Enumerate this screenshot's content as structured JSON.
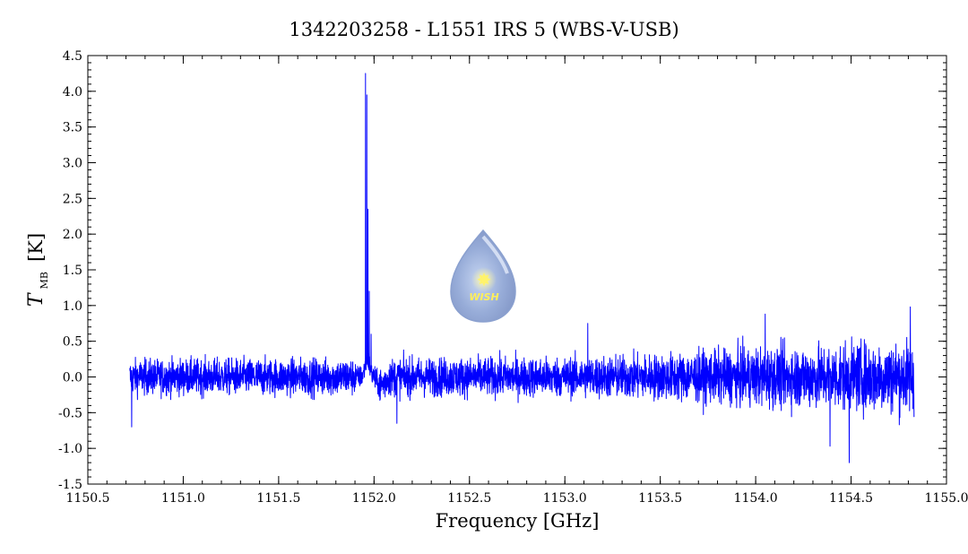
{
  "title": "1342203258 - L1551 IRS 5 (WBS-V-USB)",
  "watermark": {
    "text": "WISH"
  },
  "chart_data": {
    "type": "line",
    "title": "1342203258 - L1551 IRS 5 (WBS-V-USB)",
    "xlabel": "Frequency [GHz]",
    "ylabel": {
      "symbol": "T",
      "subscript": "MB",
      "unit": "[K]"
    },
    "xlim": [
      1150.5,
      1155.0
    ],
    "ylim": [
      -1.5,
      4.5
    ],
    "xticks": [
      "1150.5",
      "1151.0",
      "1151.5",
      "1152.0",
      "1152.5",
      "1153.0",
      "1153.5",
      "1154.0",
      "1154.5",
      "1155.0"
    ],
    "yticks": [
      "-1.5",
      "-1.0",
      "-0.5",
      "0.0",
      "0.5",
      "1.0",
      "1.5",
      "2.0",
      "2.5",
      "3.0",
      "3.5",
      "4.0",
      "4.5"
    ],
    "grid": false,
    "series": [
      {
        "color": "#0000ff",
        "x_range": [
          1150.72,
          1154.83
        ],
        "noise_rms": [
          [
            1150.72,
            0.17
          ],
          [
            1153.0,
            0.19
          ],
          [
            1153.5,
            0.22
          ],
          [
            1154.0,
            0.28
          ],
          [
            1154.83,
            0.35
          ]
        ],
        "peaks": [
          {
            "x": 1151.955,
            "y": 4.25
          },
          {
            "x": 1151.962,
            "y": 3.95
          },
          {
            "x": 1151.968,
            "y": 2.35
          },
          {
            "x": 1151.975,
            "y": 1.2
          },
          {
            "x": 1151.985,
            "y": 0.6
          }
        ],
        "notable_points": [
          {
            "x": 1150.73,
            "y": -0.7
          },
          {
            "x": 1152.12,
            "y": -0.65
          },
          {
            "x": 1153.12,
            "y": 0.75
          },
          {
            "x": 1154.05,
            "y": 0.88
          },
          {
            "x": 1154.39,
            "y": -0.97
          },
          {
            "x": 1154.49,
            "y": -1.2
          },
          {
            "x": 1154.81,
            "y": 0.98
          }
        ]
      }
    ]
  }
}
